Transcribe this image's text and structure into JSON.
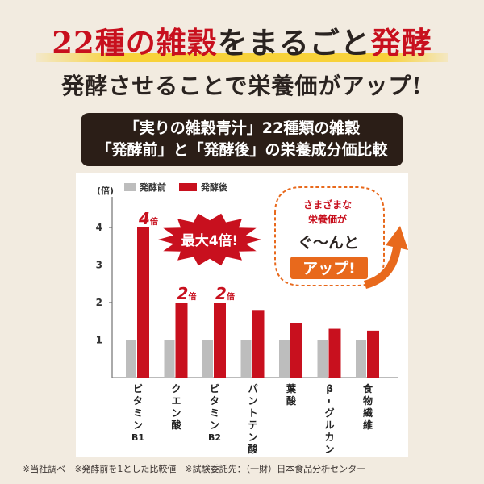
{
  "header": {
    "title_red": "22種の雑穀",
    "title_dark_1": "をまるごと",
    "title_red_2": "発酵",
    "subtitle": "発酵させることで栄養価がアップ!"
  },
  "banner": {
    "line1": "「実りの雑穀青汁」22種類の雑穀",
    "line2": "「発酵前」と「発酵後」の栄養成分価比較"
  },
  "chart_data": {
    "type": "bar",
    "unit_label": "(倍)",
    "categories": [
      "ビタミンB1",
      "クエン酸",
      "ビタミンB2",
      "パントテン酸",
      "葉酸",
      "β-グルカン",
      "食物繊維"
    ],
    "category_display": [
      [
        "ビ",
        "タ",
        "ミ",
        "ン",
        "B1"
      ],
      [
        "ク",
        "エ",
        "ン",
        "酸"
      ],
      [
        "ビ",
        "タ",
        "ミ",
        "ン",
        "B2"
      ],
      [
        "パ",
        "ン",
        "ト",
        "テ",
        "ン",
        "酸"
      ],
      [
        "葉",
        "酸"
      ],
      [
        "β",
        "-",
        "グ",
        "ル",
        "カ",
        "ン"
      ],
      [
        "食",
        "物",
        "繊",
        "維"
      ]
    ],
    "series": [
      {
        "name": "発酵前",
        "color": "#bdbdbd",
        "values": [
          1,
          1,
          1,
          1,
          1,
          1,
          1
        ]
      },
      {
        "name": "発酵後",
        "color": "#c8101e",
        "values": [
          4,
          2,
          2,
          1.8,
          1.45,
          1.3,
          1.25
        ]
      }
    ],
    "yticks": [
      1,
      2,
      3,
      4
    ],
    "ylim": [
      0,
      4.4
    ],
    "legend_position": "top-left",
    "bar_labels": [
      {
        "index": 0,
        "num": "4",
        "suffix": "倍"
      },
      {
        "index": 1,
        "num": "2",
        "suffix": "倍"
      },
      {
        "index": 2,
        "num": "2",
        "suffix": "倍"
      }
    ],
    "annotations": {
      "burst": "最大4倍!",
      "bubble_line1": "さまざまな",
      "bubble_line2": "栄養価が",
      "bubble_line3": "ぐ〜んと",
      "bubble_line4": "アップ!"
    }
  },
  "footnote": "※当社調べ　※発酵前を1とした比較値　※試験委託先：（一財）日本食品分析センター",
  "colors": {
    "accent_red": "#c8101e",
    "orange": "#e8691c",
    "dark": "#2b1e17",
    "highlight": "#f8d23a"
  }
}
